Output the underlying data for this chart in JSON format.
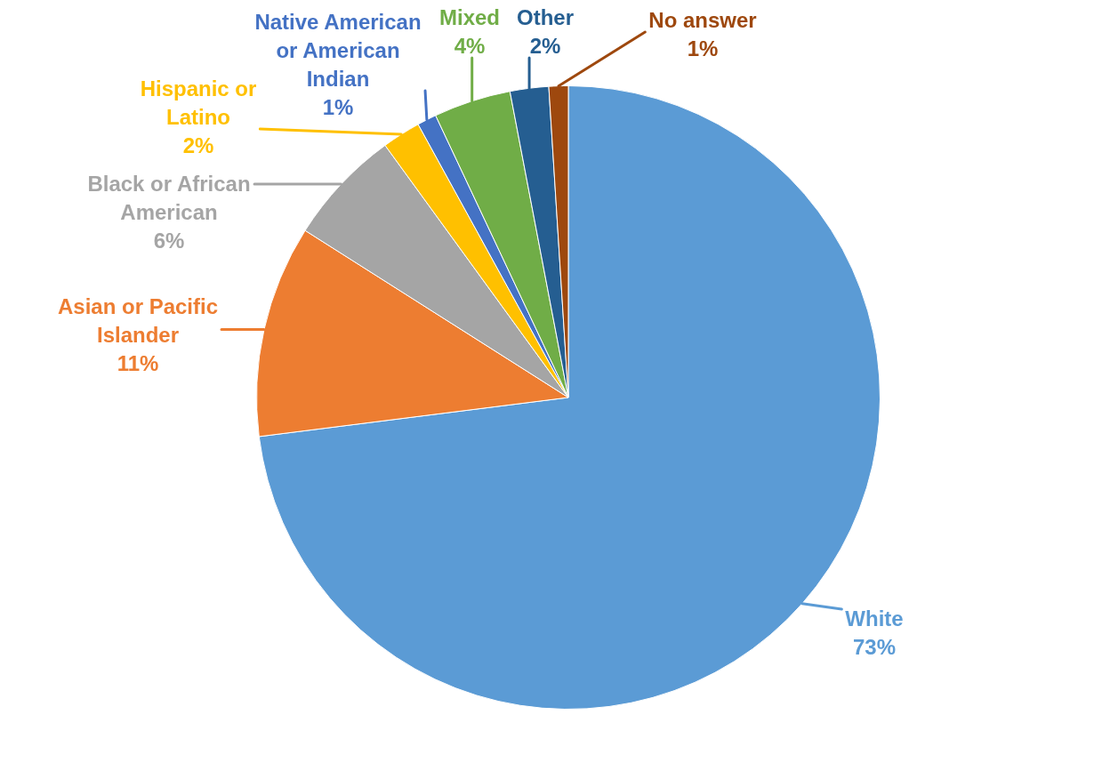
{
  "chart_data": {
    "type": "pie",
    "categories": [
      "White",
      "Asian or Pacific Islander",
      "Black or African American",
      "Hispanic or Latino",
      "Native American or American Indian",
      "Mixed",
      "Other",
      "No answer"
    ],
    "values": [
      73,
      11,
      6,
      2,
      1,
      4,
      2,
      1
    ],
    "value_labels": [
      "73%",
      "11%",
      "6%",
      "2%",
      "1%",
      "4%",
      "2%",
      "1%"
    ],
    "colors": [
      "#5b9bd5",
      "#ed7d31",
      "#a5a5a5",
      "#ffc000",
      "#4472c4",
      "#70ad47",
      "#255e91",
      "#9e480e"
    ],
    "legend": false
  }
}
